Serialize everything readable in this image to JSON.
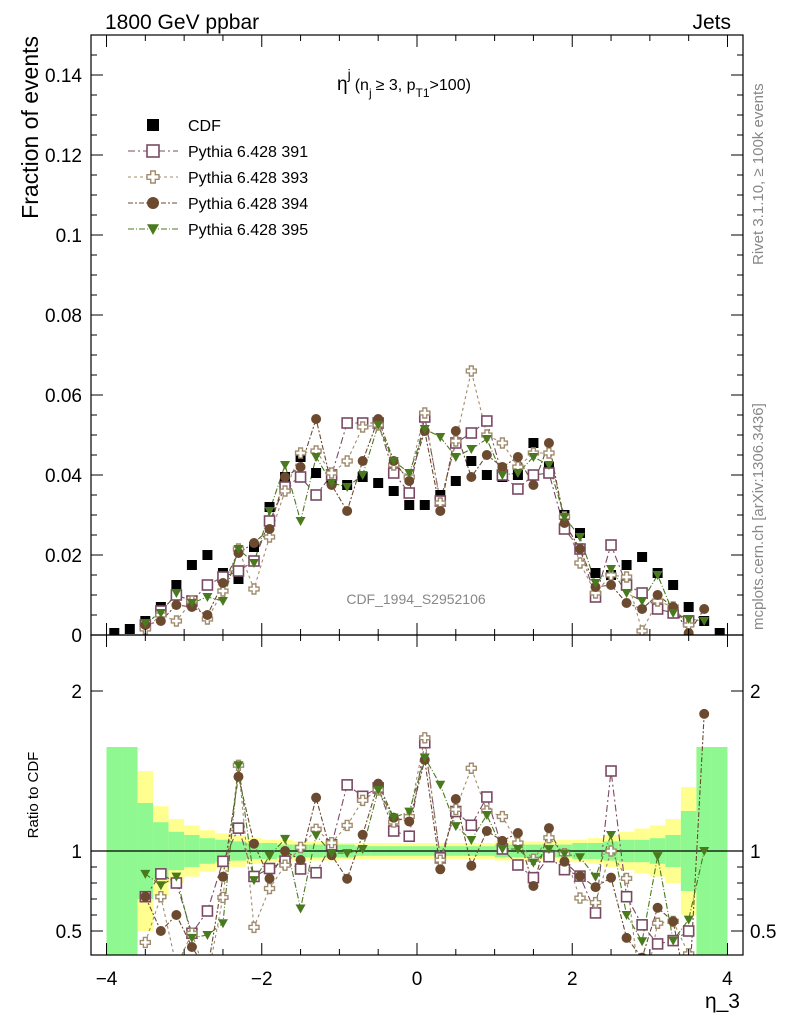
{
  "header": {
    "left": "1800 GeV ppbar",
    "right": "Jets"
  },
  "side_labels": {
    "rivet": "Rivet 3.1.10, ≥ 100k events",
    "mcplots": "mcplots.cern.ch [arXiv:1306.3436]"
  },
  "watermark": "CDF_1994_S2952106",
  "colors": {
    "cdf": "#000000",
    "p391": "#7a4a64",
    "p393": "#a08c6e",
    "p394": "#6b4a30",
    "p395": "#4a7a1e",
    "band_green": "#90f890",
    "band_yellow": "#ffff90"
  },
  "chart_data": {
    "type": "scatter",
    "title_main": "η",
    "title_sup": "j",
    "title_paren_open": "(n",
    "title_n_sub": "j",
    "title_mid": "≥ 3, p",
    "title_p_sub": "T1",
    "title_end": ">100)",
    "xlabel": "η_3",
    "ylabel_top": "Fraction of events",
    "ylabel_bottom": "Ratio to CDF",
    "xlim": [
      -4.2,
      4.2
    ],
    "ylim_top": [
      0,
      0.15
    ],
    "ylim_bottom": [
      0.35,
      2.35
    ],
    "x_ticks": [
      -4,
      -2,
      0,
      2,
      4
    ],
    "x_tick_labels": [
      "−4",
      "−2",
      "0",
      "2",
      "4"
    ],
    "y_ticks_top": [
      0,
      0.02,
      0.04,
      0.06,
      0.08,
      0.1,
      0.12,
      0.14
    ],
    "y_tick_labels_top": [
      "0",
      "0.02",
      "0.04",
      "0.06",
      "0.08",
      "0.1",
      "0.12",
      "0.14"
    ],
    "y_ticks_bottom": [
      0.5,
      1,
      2
    ],
    "y_tick_labels_bottom": [
      "0.5",
      "1",
      "2"
    ],
    "legend_position": "top-left",
    "x": [
      -3.9,
      -3.7,
      -3.5,
      -3.3,
      -3.1,
      -2.9,
      -2.7,
      -2.5,
      -2.3,
      -2.1,
      -1.9,
      -1.7,
      -1.5,
      -1.3,
      -1.1,
      -0.9,
      -0.7,
      -0.5,
      -0.3,
      -0.1,
      0.1,
      0.3,
      0.5,
      0.7,
      0.9,
      1.1,
      1.3,
      1.5,
      1.7,
      1.9,
      2.1,
      2.3,
      2.5,
      2.7,
      2.9,
      3.1,
      3.3,
      3.5,
      3.7,
      3.9
    ],
    "band_edges": [
      -4.0,
      -3.8,
      -3.6,
      -3.4,
      -3.2,
      -3.0,
      -2.8,
      -2.6,
      -2.4,
      -2.2,
      -2.0,
      -1.8,
      -1.6,
      -1.4,
      -1.2,
      -1.0,
      -0.8,
      -0.6,
      -0.4,
      -0.2,
      0.0,
      0.2,
      0.4,
      0.6,
      0.8,
      1.0,
      1.2,
      1.4,
      1.6,
      1.8,
      2.0,
      2.2,
      2.4,
      2.6,
      2.8,
      3.0,
      3.2,
      3.4,
      3.6,
      3.8,
      4.0
    ],
    "band_green_half": [
      0.65,
      0.65,
      0.3,
      0.18,
      0.12,
      0.1,
      0.08,
      0.07,
      0.06,
      0.05,
      0.05,
      0.04,
      0.04,
      0.04,
      0.04,
      0.04,
      0.03,
      0.03,
      0.03,
      0.03,
      0.03,
      0.03,
      0.03,
      0.03,
      0.03,
      0.04,
      0.04,
      0.04,
      0.04,
      0.04,
      0.05,
      0.05,
      0.06,
      0.07,
      0.07,
      0.08,
      0.1,
      0.25,
      0.65,
      0.65
    ],
    "band_yellow_half": [
      0.65,
      0.65,
      0.5,
      0.28,
      0.2,
      0.16,
      0.13,
      0.11,
      0.1,
      0.08,
      0.07,
      0.07,
      0.06,
      0.06,
      0.06,
      0.05,
      0.05,
      0.05,
      0.05,
      0.05,
      0.05,
      0.05,
      0.05,
      0.05,
      0.05,
      0.06,
      0.06,
      0.06,
      0.06,
      0.07,
      0.07,
      0.08,
      0.1,
      0.12,
      0.14,
      0.16,
      0.2,
      0.4,
      0.65,
      0.65
    ],
    "series": [
      {
        "name": "CDF",
        "marker": "filled-square",
        "line": false,
        "values": [
          0.0005,
          0.0015,
          0.0035,
          0.007,
          0.0125,
          0.0175,
          0.02,
          0.0155,
          0.014,
          0.022,
          0.032,
          0.0395,
          0.0445,
          0.0405,
          0.0385,
          0.0375,
          0.0395,
          0.038,
          0.036,
          0.0325,
          0.0325,
          0.035,
          0.0385,
          0.0435,
          0.04,
          0.0395,
          0.04,
          0.048,
          0.042,
          0.03,
          0.0255,
          0.0155,
          0.015,
          0.0175,
          0.0195,
          0.0155,
          0.0125,
          0.007,
          0.0035,
          0.0005
        ]
      },
      {
        "name": "Pythia 6.428 391",
        "marker": "open-square",
        "line": true,
        "values": [
          null,
          null,
          0.0025,
          0.006,
          0.01,
          0.0085,
          0.0125,
          0.0145,
          0.016,
          0.0185,
          0.0285,
          0.037,
          0.0395,
          0.035,
          0.04,
          0.053,
          0.053,
          0.053,
          0.0405,
          0.0355,
          0.0545,
          0.0335,
          0.048,
          0.0505,
          0.0535,
          0.04,
          0.0365,
          0.04,
          0.0405,
          0.0265,
          0.0215,
          0.0095,
          0.0225,
          0.0125,
          0.0105,
          0.0065,
          0.0055,
          0.0035,
          null,
          null
        ]
      },
      {
        "name": "Pythia 6.428 393",
        "marker": "open-cross",
        "line": true,
        "values": [
          null,
          null,
          0.0015,
          0.005,
          0.0035,
          0.0085,
          0.004,
          0.011,
          0.0215,
          0.0115,
          0.0245,
          0.036,
          0.0455,
          0.046,
          0.0405,
          0.0435,
          0.052,
          0.0525,
          0.0425,
          0.0395,
          0.0555,
          0.033,
          0.0485,
          0.066,
          0.05,
          0.048,
          0.042,
          0.0455,
          0.0455,
          0.0295,
          0.018,
          0.0105,
          0.015,
          0.0145,
          0.001,
          0.0085,
          0.007,
          0.0025,
          null,
          null
        ]
      },
      {
        "name": "Pythia 6.428 394",
        "marker": "filled-circle",
        "line": true,
        "values": [
          null,
          null,
          0.0025,
          0.0035,
          0.0075,
          0.007,
          0.005,
          0.013,
          0.0205,
          0.023,
          0.0265,
          0.0395,
          0.042,
          0.054,
          0.0375,
          0.031,
          0.0435,
          0.054,
          0.0435,
          0.0385,
          0.051,
          0.031,
          0.051,
          0.0395,
          0.045,
          0.042,
          0.0445,
          0.0375,
          0.048,
          0.028,
          0.0215,
          0.012,
          0.0125,
          0.008,
          0.0065,
          0.01,
          0.007,
          0.0005,
          0.0065,
          null
        ]
      },
      {
        "name": "Pythia 6.428 395",
        "marker": "filled-triangle-down",
        "line": true,
        "values": [
          null,
          null,
          0.003,
          0.0055,
          0.0105,
          0.008,
          0.0095,
          0.0085,
          0.0215,
          0.018,
          0.031,
          0.0425,
          0.0285,
          0.0445,
          0.038,
          0.037,
          0.04,
          0.0525,
          0.0435,
          0.0405,
          0.0515,
          0.0495,
          0.0445,
          0.0465,
          0.049,
          0.04,
          0.0405,
          0.0445,
          0.0425,
          0.0295,
          0.0245,
          0.013,
          0.0165,
          0.0105,
          0.0085,
          0.015,
          0.0055,
          0.004,
          0.0035,
          null
        ]
      }
    ]
  }
}
